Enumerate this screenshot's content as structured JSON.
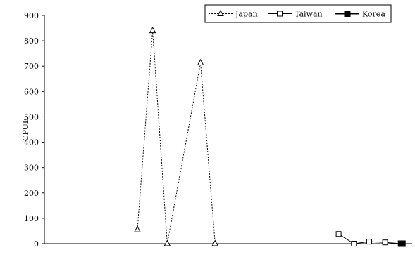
{
  "chart_data": {
    "type": "line",
    "title": "",
    "xlabel": "",
    "ylabel": "CPUE",
    "ylim": [
      0,
      900
    ],
    "yticks": [
      0,
      100,
      200,
      300,
      400,
      500,
      600,
      700,
      800,
      900
    ],
    "xlim": [
      0,
      530
    ],
    "grid": false,
    "legend": "top-right",
    "series": [
      {
        "name": "Japan",
        "color": "#000000",
        "line": "dotted",
        "marker": "open-triangle",
        "points": [
          [
            134,
            55
          ],
          [
            156,
            840
          ],
          [
            177,
            0
          ],
          [
            225,
            713
          ],
          [
            246,
            0
          ]
        ]
      },
      {
        "name": "Taiwan",
        "color": "#000000",
        "line": "solid",
        "marker": "open-square",
        "points": [
          [
            424,
            38
          ],
          [
            446,
            0
          ],
          [
            468,
            8
          ],
          [
            491,
            5
          ],
          [
            514,
            0
          ]
        ]
      },
      {
        "name": "Korea",
        "color": "#000000",
        "line": "solid",
        "marker": "filled-square",
        "points": [
          [
            514,
            0
          ],
          [
            515,
            0
          ],
          [
            516,
            0
          ]
        ]
      }
    ]
  }
}
